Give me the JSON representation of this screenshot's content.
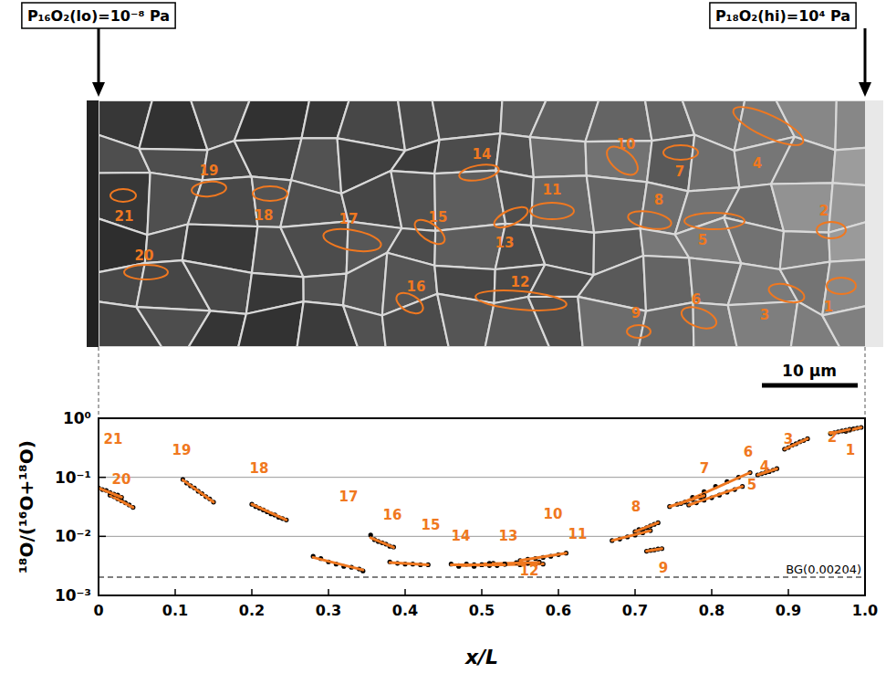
{
  "figure": {
    "left_label": "P₁₆O₂(lo)=10⁻⁸ Pa",
    "right_label": "P₁₈O₂(hi)=10⁴ Pa",
    "scale_bar": "10 μm"
  },
  "chart_data": {
    "type": "scatter",
    "x_label": "x/L",
    "y_label": "¹⁸O/(¹⁶O+¹⁸O)",
    "log": "y",
    "grid": true,
    "xlim": [
      0,
      1
    ],
    "ylim": [
      0.001,
      1
    ],
    "xticks": [
      0,
      0.1,
      0.2,
      0.3,
      0.4,
      0.5,
      0.6,
      0.7,
      0.8,
      0.9,
      {
        "value": 1,
        "label": "1.0"
      }
    ],
    "yticks": [
      {
        "value": 0.001,
        "label": "10⁻³"
      },
      {
        "value": 0.01,
        "label": "10⁻²"
      },
      {
        "value": 0.1,
        "label": "10⁻¹"
      },
      {
        "value": 1,
        "label": "10⁰"
      }
    ],
    "annotation": {
      "value": 0.00204,
      "label": "BG(0.00204)"
    },
    "series": [
      {
        "name": "1",
        "color": "#000000",
        "x": [
          0.975,
          0.98,
          0.985,
          0.99,
          0.995
        ],
        "values": [
          0.6,
          0.63,
          0.66,
          0.68,
          0.7
        ],
        "fit": {
          "color": "#f07820",
          "x": [
            0.975,
            0.995
          ],
          "values": [
            0.6,
            0.7
          ]
        }
      },
      {
        "name": "2",
        "color": "#000000",
        "x": [
          0.955,
          0.96,
          0.965,
          0.97,
          0.975,
          0.98
        ],
        "values": [
          0.55,
          0.57,
          0.59,
          0.61,
          0.63,
          0.65
        ],
        "fit": {
          "color": "#f07820",
          "x": [
            0.955,
            0.98
          ],
          "values": [
            0.55,
            0.65
          ]
        }
      },
      {
        "name": "3",
        "color": "#000000",
        "x": [
          0.895,
          0.9,
          0.905,
          0.91,
          0.915,
          0.92,
          0.925
        ],
        "values": [
          0.3,
          0.32,
          0.35,
          0.37,
          0.4,
          0.42,
          0.45
        ],
        "fit": {
          "color": "#f07820",
          "x": [
            0.895,
            0.925
          ],
          "values": [
            0.3,
            0.45
          ]
        }
      },
      {
        "name": "4",
        "color": "#000000",
        "x": [
          0.86,
          0.865,
          0.87,
          0.875,
          0.88,
          0.885
        ],
        "values": [
          0.11,
          0.115,
          0.12,
          0.125,
          0.132,
          0.14
        ],
        "fit": {
          "color": "#f07820",
          "x": [
            0.86,
            0.885
          ],
          "values": [
            0.11,
            0.14
          ]
        }
      },
      {
        "name": "5",
        "color": "#000000",
        "x": [
          0.77,
          0.78,
          0.79,
          0.8,
          0.81,
          0.82,
          0.83,
          0.84
        ],
        "values": [
          0.034,
          0.037,
          0.041,
          0.045,
          0.05,
          0.056,
          0.062,
          0.07
        ],
        "fit": {
          "color": "#f07820",
          "x": [
            0.77,
            0.84
          ],
          "values": [
            0.034,
            0.07
          ]
        }
      },
      {
        "name": "6",
        "color": "#000000",
        "x": [
          0.76,
          0.775,
          0.79,
          0.805,
          0.82,
          0.835,
          0.85
        ],
        "values": [
          0.036,
          0.046,
          0.057,
          0.07,
          0.085,
          0.1,
          0.12
        ],
        "fit": {
          "color": "#f07820",
          "x": [
            0.76,
            0.85
          ],
          "values": [
            0.036,
            0.12
          ]
        }
      },
      {
        "name": "7",
        "color": "#000000",
        "x": [
          0.745,
          0.755,
          0.765,
          0.775,
          0.785,
          0.79
        ],
        "values": [
          0.032,
          0.035,
          0.038,
          0.042,
          0.046,
          0.049
        ],
        "fit": {
          "color": "#f07820",
          "x": [
            0.745,
            0.79
          ],
          "values": [
            0.032,
            0.049
          ]
        }
      },
      {
        "name": "8",
        "color": "#000000",
        "x": [
          0.7,
          0.705,
          0.71,
          0.715,
          0.72,
          0.725,
          0.73
        ],
        "values": [
          0.012,
          0.013,
          0.013,
          0.014,
          0.015,
          0.016,
          0.017
        ],
        "fit": {
          "color": "#f07820",
          "x": [
            0.7,
            0.73
          ],
          "values": [
            0.012,
            0.017
          ]
        }
      },
      {
        "name": "9",
        "color": "#000000",
        "x": [
          0.715,
          0.72,
          0.725,
          0.73,
          0.735
        ],
        "values": [
          0.0056,
          0.0058,
          0.0059,
          0.0061,
          0.0062
        ],
        "fit": {
          "color": "#f07820",
          "x": [
            0.715,
            0.735
          ],
          "values": [
            0.0056,
            0.0062
          ]
        }
      },
      {
        "name": "10",
        "color": "#000000",
        "x": [
          0.67,
          0.68,
          0.69,
          0.7,
          0.71,
          0.72
        ],
        "values": [
          0.0085,
          0.009,
          0.0098,
          0.0105,
          0.0115,
          0.0125
        ],
        "fit": {
          "color": "#f07820",
          "x": [
            0.67,
            0.72
          ],
          "values": [
            0.0085,
            0.0125
          ]
        }
      },
      {
        "name": "11",
        "color": "#000000",
        "x": [
          0.55,
          0.56,
          0.57,
          0.58,
          0.59,
          0.6,
          0.61
        ],
        "values": [
          0.0039,
          0.0041,
          0.0042,
          0.0044,
          0.0046,
          0.0049,
          0.0052
        ],
        "fit": {
          "color": "#f07820",
          "x": [
            0.55,
            0.61
          ],
          "values": [
            0.0039,
            0.0052
          ]
        }
      },
      {
        "name": "12",
        "color": "#000000",
        "x": [
          0.47,
          0.49,
          0.51,
          0.53,
          0.55,
          0.57,
          0.58
        ],
        "values": [
          0.0031,
          0.0033,
          0.0032,
          0.0034,
          0.0033,
          0.0034,
          0.0034
        ],
        "fit": {
          "color": "#f07820",
          "x": [
            0.47,
            0.58
          ],
          "values": [
            0.0032,
            0.0034
          ]
        }
      },
      {
        "name": "13",
        "color": "#000000",
        "x": [
          0.5,
          0.515,
          0.53,
          0.545,
          0.56,
          0.575
        ],
        "values": [
          0.0033,
          0.0035,
          0.0034,
          0.0036,
          0.0035,
          0.0037
        ],
        "fit": {
          "color": "#f07820",
          "x": [
            0.5,
            0.575
          ],
          "values": [
            0.0034,
            0.0036
          ]
        }
      },
      {
        "name": "14",
        "color": "#000000",
        "x": [
          0.46,
          0.47,
          0.48,
          0.49,
          0.5,
          0.51,
          0.52,
          0.53
        ],
        "values": [
          0.0034,
          0.0032,
          0.0034,
          0.0031,
          0.0033,
          0.0035,
          0.0032,
          0.0034
        ],
        "fit": {
          "color": "#f07820",
          "x": [
            0.46,
            0.53
          ],
          "values": [
            0.0033,
            0.0033
          ]
        }
      },
      {
        "name": "15",
        "color": "#000000",
        "x": [
          0.38,
          0.39,
          0.4,
          0.41,
          0.42,
          0.43
        ],
        "values": [
          0.0037,
          0.0035,
          0.0034,
          0.0034,
          0.0033,
          0.0033
        ],
        "fit": {
          "color": "#f07820",
          "x": [
            0.38,
            0.43
          ],
          "values": [
            0.0036,
            0.0033
          ]
        }
      },
      {
        "name": "16",
        "color": "#000000",
        "x": [
          0.355,
          0.36,
          0.365,
          0.37,
          0.375,
          0.38,
          0.385
        ],
        "values": [
          0.0105,
          0.0088,
          0.0082,
          0.0078,
          0.0074,
          0.0068,
          0.0066
        ],
        "fit": {
          "color": "#f07820",
          "x": [
            0.355,
            0.385
          ],
          "values": [
            0.0095,
            0.0065
          ]
        }
      },
      {
        "name": "17",
        "color": "#000000",
        "x": [
          0.28,
          0.29,
          0.3,
          0.31,
          0.32,
          0.33,
          0.34,
          0.345
        ],
        "values": [
          0.0046,
          0.0042,
          0.0037,
          0.0034,
          0.0031,
          0.003,
          0.0028,
          0.0026
        ],
        "fit": {
          "color": "#f07820",
          "x": [
            0.28,
            0.345
          ],
          "values": [
            0.0044,
            0.0027
          ]
        }
      },
      {
        "name": "18",
        "color": "#000000",
        "x": [
          0.2,
          0.205,
          0.21,
          0.215,
          0.22,
          0.225,
          0.23,
          0.235,
          0.24,
          0.245
        ],
        "values": [
          0.035,
          0.032,
          0.03,
          0.028,
          0.026,
          0.024,
          0.023,
          0.021,
          0.02,
          0.019
        ],
        "fit": {
          "color": "#f07820",
          "x": [
            0.2,
            0.245
          ],
          "values": [
            0.035,
            0.019
          ]
        }
      },
      {
        "name": "19",
        "color": "#000000",
        "x": [
          0.11,
          0.115,
          0.12,
          0.125,
          0.13,
          0.135,
          0.14,
          0.145,
          0.15
        ],
        "values": [
          0.092,
          0.08,
          0.072,
          0.066,
          0.058,
          0.053,
          0.047,
          0.043,
          0.038
        ],
        "fit": {
          "color": "#f07820",
          "x": [
            0.11,
            0.15
          ],
          "values": [
            0.09,
            0.038
          ]
        }
      },
      {
        "name": "20",
        "color": "#000000",
        "x": [
          0.015,
          0.02,
          0.025,
          0.03,
          0.035,
          0.04,
          0.045
        ],
        "values": [
          0.05,
          0.047,
          0.043,
          0.04,
          0.037,
          0.034,
          0.031
        ],
        "fit": {
          "color": "#f07820",
          "x": [
            0.015,
            0.045
          ],
          "values": [
            0.05,
            0.031
          ]
        }
      },
      {
        "name": "21",
        "color": "#000000",
        "x": [
          0.0,
          0.005,
          0.01,
          0.015,
          0.02,
          0.025,
          0.03
        ],
        "values": [
          0.066,
          0.062,
          0.06,
          0.055,
          0.052,
          0.05,
          0.046
        ],
        "fit": {
          "color": "#f07820",
          "x": [
            0.0,
            0.03
          ],
          "values": [
            0.066,
            0.046
          ]
        }
      }
    ]
  }
}
